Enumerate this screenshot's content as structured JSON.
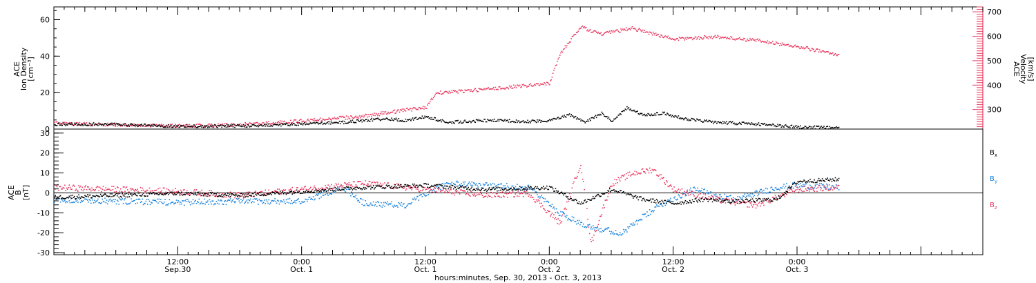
{
  "chart_data": {
    "type": "scatter",
    "x_range": [
      "2013-09-30T00:00",
      "2013-10-03T18:00"
    ],
    "x_ticks": [
      {
        "time": "2013-09-30T12:00",
        "label": "12:00",
        "sublabel": "Sep.30"
      },
      {
        "time": "2013-10-01T00:00",
        "label": "0:00",
        "sublabel": "Oct. 1"
      },
      {
        "time": "2013-10-01T12:00",
        "label": "12:00",
        "sublabel": "Oct. 1"
      },
      {
        "time": "2013-10-02T00:00",
        "label": "0:00",
        "sublabel": "Oct. 2"
      },
      {
        "time": "2013-10-02T12:00",
        "label": "12:00",
        "sublabel": "Oct. 2"
      },
      {
        "time": "2013-10-03T00:00",
        "label": "0:00",
        "sublabel": "Oct. 3"
      }
    ],
    "xlabel": "hours:minutes, Sep. 30, 2013 - Oct.  3, 2013",
    "panels": [
      {
        "left_axis": {
          "label_lines": [
            "ACE",
            "Ion Density",
            "[cm⁻³]"
          ],
          "range": [
            0,
            67
          ],
          "ticks": [
            0,
            20,
            40,
            60
          ]
        },
        "right_axis": {
          "label_lines": [
            "ACE",
            "Velocity",
            "[km/s]"
          ],
          "range": [
            220,
            720
          ],
          "ticks": [
            300,
            400,
            500,
            600,
            700
          ],
          "color": "#e8385f"
        },
        "series": [
          {
            "key": "density",
            "color": "#000000",
            "axis": "left",
            "points": [
              [
                "2013-09-30T00:00",
                3
              ],
              [
                "2013-09-30T06:00",
                2.8
              ],
              [
                "2013-09-30T12:00",
                1.8
              ],
              [
                "2013-09-30T18:00",
                2
              ],
              [
                "2013-10-01T00:00",
                3
              ],
              [
                "2013-10-01T04:00",
                4
              ],
              [
                "2013-10-01T06:00",
                5
              ],
              [
                "2013-10-01T08:00",
                6
              ],
              [
                "2013-10-01T10:00",
                5
              ],
              [
                "2013-10-01T12:00",
                7
              ],
              [
                "2013-10-01T14:00",
                4
              ],
              [
                "2013-10-01T18:00",
                5
              ],
              [
                "2013-10-01T22:00",
                4.5
              ],
              [
                "2013-10-02T00:00",
                5
              ],
              [
                "2013-10-02T02:00",
                8
              ],
              [
                "2013-10-02T03:30",
                4
              ],
              [
                "2013-10-02T05:00",
                9
              ],
              [
                "2013-10-02T06:00",
                5
              ],
              [
                "2013-10-02T07:30",
                12
              ],
              [
                "2013-10-02T09:00",
                8
              ],
              [
                "2013-10-02T11:00",
                9
              ],
              [
                "2013-10-02T13:00",
                6
              ],
              [
                "2013-10-02T16:00",
                4
              ],
              [
                "2013-10-02T20:00",
                3
              ],
              [
                "2013-10-03T00:00",
                1.5
              ],
              [
                "2013-10-03T04:00",
                0.8
              ]
            ]
          },
          {
            "key": "velocity",
            "color": "#e8385f",
            "axis": "right",
            "points": [
              [
                "2013-09-30T00:00",
                245
              ],
              [
                "2013-09-30T06:00",
                240
              ],
              [
                "2013-09-30T12:00",
                235
              ],
              [
                "2013-09-30T18:00",
                240
              ],
              [
                "2013-10-01T00:00",
                255
              ],
              [
                "2013-10-01T06:00",
                275
              ],
              [
                "2013-10-01T10:00",
                300
              ],
              [
                "2013-10-01T12:00",
                310
              ],
              [
                "2013-10-01T13:00",
                370
              ],
              [
                "2013-10-01T18:00",
                385
              ],
              [
                "2013-10-02T00:00",
                410
              ],
              [
                "2013-10-02T01:00",
                530
              ],
              [
                "2013-10-02T03:00",
                640
              ],
              [
                "2013-10-02T05:00",
                610
              ],
              [
                "2013-10-02T08:00",
                635
              ],
              [
                "2013-10-02T12:00",
                590
              ],
              [
                "2013-10-02T16:00",
                600
              ],
              [
                "2013-10-02T20:00",
                585
              ],
              [
                "2013-10-03T00:00",
                560
              ],
              [
                "2013-10-03T04:00",
                525
              ]
            ]
          }
        ]
      },
      {
        "left_axis": {
          "label_lines": [
            "ACE",
            "B",
            "[nT]"
          ],
          "range": [
            -31,
            32
          ],
          "ticks": [
            -30,
            -20,
            -10,
            0,
            10,
            20,
            30
          ]
        },
        "zero_line": true,
        "series": [
          {
            "key": "Bx",
            "color": "#000000",
            "label": "B",
            "subscript": "x",
            "points": [
              [
                "2013-09-30T00:00",
                -2
              ],
              [
                "2013-09-30T06:00",
                -1
              ],
              [
                "2013-09-30T12:00",
                0
              ],
              [
                "2013-09-30T18:00",
                -1
              ],
              [
                "2013-10-01T00:00",
                1
              ],
              [
                "2013-10-01T06:00",
                3
              ],
              [
                "2013-10-01T12:00",
                4
              ],
              [
                "2013-10-01T18:00",
                2
              ],
              [
                "2013-10-02T00:00",
                3
              ],
              [
                "2013-10-02T03:00",
                -5
              ],
              [
                "2013-10-02T06:00",
                2
              ],
              [
                "2013-10-02T09:00",
                -3
              ],
              [
                "2013-10-02T12:00",
                -5
              ],
              [
                "2013-10-02T15:00",
                -3
              ],
              [
                "2013-10-02T18:00",
                -4
              ],
              [
                "2013-10-02T22:00",
                -3
              ],
              [
                "2013-10-03T00:00",
                6
              ],
              [
                "2013-10-03T04:00",
                7
              ]
            ]
          },
          {
            "key": "By",
            "color": "#1c84de",
            "label": "B",
            "subscript": "y",
            "points": [
              [
                "2013-09-30T00:00",
                -3
              ],
              [
                "2013-09-30T06:00",
                -4
              ],
              [
                "2013-09-30T12:00",
                -4.5
              ],
              [
                "2013-09-30T18:00",
                -4
              ],
              [
                "2013-10-01T00:00",
                -4
              ],
              [
                "2013-10-01T04:00",
                3
              ],
              [
                "2013-10-01T06:00",
                -5
              ],
              [
                "2013-10-01T10:00",
                -6
              ],
              [
                "2013-10-01T14:00",
                5
              ],
              [
                "2013-10-01T18:00",
                4
              ],
              [
                "2013-10-01T22:00",
                3
              ],
              [
                "2013-10-02T01:00",
                -10
              ],
              [
                "2013-10-02T03:00",
                -15
              ],
              [
                "2013-10-02T05:00",
                -18
              ],
              [
                "2013-10-02T07:00",
                -20
              ],
              [
                "2013-10-02T09:00",
                -12
              ],
              [
                "2013-10-02T11:00",
                -5
              ],
              [
                "2013-10-02T14:00",
                2
              ],
              [
                "2013-10-02T18:00",
                -3
              ],
              [
                "2013-10-02T22:00",
                3
              ],
              [
                "2013-10-03T00:00",
                4
              ],
              [
                "2013-10-03T04:00",
                3
              ]
            ]
          },
          {
            "key": "Bz",
            "color": "#e8385f",
            "label": "B",
            "subscript": "z",
            "points": [
              [
                "2013-09-30T00:00",
                3
              ],
              [
                "2013-09-30T06:00",
                2
              ],
              [
                "2013-09-30T12:00",
                1
              ],
              [
                "2013-09-30T18:00",
                -1
              ],
              [
                "2013-10-01T00:00",
                2
              ],
              [
                "2013-10-01T06:00",
                5
              ],
              [
                "2013-10-01T10:00",
                3
              ],
              [
                "2013-10-01T14:00",
                1
              ],
              [
                "2013-10-01T18:00",
                -1
              ],
              [
                "2013-10-01T22:00",
                0
              ],
              [
                "2013-10-02T01:00",
                -15
              ],
              [
                "2013-10-02T03:00",
                15
              ],
              [
                "2013-10-02T04:00",
                -25
              ],
              [
                "2013-10-02T06:00",
                5
              ],
              [
                "2013-10-02T08:00",
                10
              ],
              [
                "2013-10-02T10:00",
                12
              ],
              [
                "2013-10-02T12:00",
                2
              ],
              [
                "2013-10-02T16:00",
                -3
              ],
              [
                "2013-10-02T20:00",
                -6
              ],
              [
                "2013-10-03T00:00",
                2
              ],
              [
                "2013-10-03T04:00",
                3
              ]
            ]
          }
        ]
      }
    ]
  }
}
